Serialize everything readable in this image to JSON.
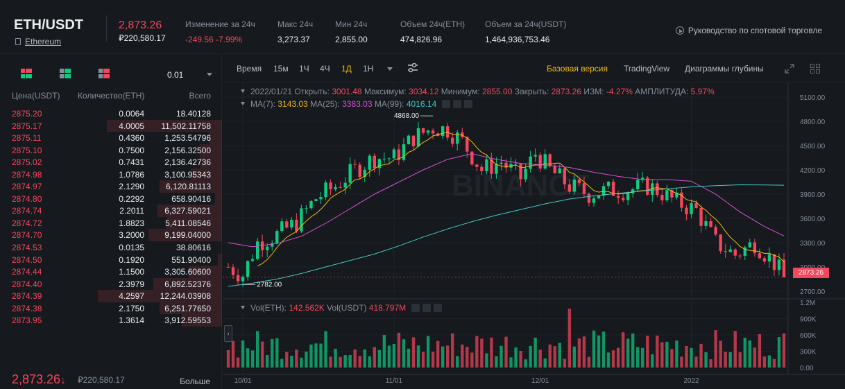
{
  "header": {
    "pair": "ETH/USDT",
    "coin_name": "Ethereum",
    "last_price": "2,873.26",
    "last_price_fiat": "₽220,580.17",
    "stats": [
      {
        "label": "Изменение за 24ч",
        "value": "-249.56 -7.99%",
        "negative": true
      },
      {
        "label": "Макс 24ч",
        "value": "3,273.37",
        "negative": false
      },
      {
        "label": "Мин 24ч",
        "value": "2,855.00",
        "negative": false
      },
      {
        "label": "Объем 24ч(ETH)",
        "value": "474,826.96",
        "negative": false
      },
      {
        "label": "Объем за 24ч(USDT)",
        "value": "1,464,936,753.46",
        "negative": false
      }
    ],
    "guide_label": "Руководство по спотовой торговле",
    "guide_icon": "play-circle-icon"
  },
  "orderbook": {
    "precision": "0.01",
    "headers": {
      "price": "Цена(USDT)",
      "qty": "Количество(ETH)",
      "total": "Всего"
    },
    "asks": [
      {
        "price": "2875.20",
        "qty": "0.0064",
        "total": "18.40128",
        "depth": 0.0
      },
      {
        "price": "2875.17",
        "qty": "4.0005",
        "total": "11,502.11758",
        "depth": 0.52
      },
      {
        "price": "2875.11",
        "qty": "0.4360",
        "total": "1,253.54796",
        "depth": 0.06
      },
      {
        "price": "2875.10",
        "qty": "0.7500",
        "total": "2,156.32500",
        "depth": 0.1
      },
      {
        "price": "2875.02",
        "qty": "0.7431",
        "total": "2,136.42736",
        "depth": 0.1
      },
      {
        "price": "2874.98",
        "qty": "1.0786",
        "total": "3,100.95343",
        "depth": 0.14
      },
      {
        "price": "2874.97",
        "qty": "2.1290",
        "total": "6,120.81113",
        "depth": 0.28
      },
      {
        "price": "2874.80",
        "qty": "0.2292",
        "total": "658.90416",
        "depth": 0.03
      },
      {
        "price": "2874.74",
        "qty": "2.2011",
        "total": "6,327.59021",
        "depth": 0.29
      },
      {
        "price": "2874.72",
        "qty": "1.8823",
        "total": "5,411.08546",
        "depth": 0.25
      },
      {
        "price": "2874.70",
        "qty": "3.2000",
        "total": "9,199.04000",
        "depth": 0.33
      },
      {
        "price": "2874.53",
        "qty": "0.0135",
        "total": "38.80616",
        "depth": 0.0
      },
      {
        "price": "2874.50",
        "qty": "0.1920",
        "total": "551.90400",
        "depth": 0.02
      },
      {
        "price": "2874.44",
        "qty": "1.1500",
        "total": "3,305.60600",
        "depth": 0.15
      },
      {
        "price": "2874.40",
        "qty": "2.3979",
        "total": "6,892.52376",
        "depth": 0.31
      },
      {
        "price": "2874.39",
        "qty": "4.2597",
        "total": "12,244.03908",
        "depth": 0.56
      },
      {
        "price": "2874.38",
        "qty": "2.1750",
        "total": "6,251.77650",
        "depth": 0.28
      },
      {
        "price": "2873.95",
        "qty": "1.3614",
        "total": "3,912.59553",
        "depth": 0.18
      }
    ],
    "last_price": "2,873.26",
    "last_arrow": "↓",
    "last_fiat": "₽220,580.17",
    "more_label": "Больше",
    "colors": {
      "ask": "#f6465d",
      "bid": "#0ecb81"
    }
  },
  "chart_toolbar": {
    "timeframes": [
      {
        "label": "Время",
        "active": false
      },
      {
        "label": "15м",
        "active": false
      },
      {
        "label": "1Ч",
        "active": false
      },
      {
        "label": "4Ч",
        "active": false
      },
      {
        "label": "1Д",
        "active": true
      },
      {
        "label": "1Н",
        "active": false
      }
    ],
    "views": [
      {
        "label": "Базовая версия",
        "active": true
      },
      {
        "label": "TradingView",
        "active": false
      },
      {
        "label": "Диаграммы глубины",
        "active": false
      }
    ]
  },
  "legend": {
    "date": "2022/01/21",
    "open_label": "Открыть:",
    "open": "3001.48",
    "high_label": "Максимум:",
    "high": "3034.12",
    "low_label": "Минимум:",
    "low": "2855.00",
    "close_label": "Закрыть:",
    "close": "2873.26",
    "chg_label": "ИЗМ:",
    "chg": "-4.27%",
    "amp_label": "АМПЛИТУДА:",
    "amp": "5.97%",
    "ma7_label": "MA(7):",
    "ma7": "3143.03",
    "ma25_label": "MA(25):",
    "ma25": "3383.03",
    "ma99_label": "MA(99):",
    "ma99": "4016.14",
    "vol_eth_label": "Vol(ETH):",
    "vol_eth": "142.562K",
    "vol_usdt_label": "Vol(USDT)",
    "vol_usdt": "418.797M"
  },
  "chart_data": {
    "type": "candlestick",
    "price_axis": {
      "min": 2700,
      "max": 5100,
      "ticks": [
        5100,
        4800,
        4500,
        4200,
        3900,
        3600,
        3300,
        3000,
        2700
      ],
      "tick_labels": [
        "5100.00",
        "4800.00",
        "4500.00",
        "4200.00",
        "3900.00",
        "3600.00",
        "3300.00",
        "3000.00",
        "2700.00"
      ]
    },
    "volume_axis": {
      "max": 1200000,
      "ticks": [
        1200000,
        900000,
        600000,
        300000,
        0
      ],
      "tick_labels": [
        "1.2M",
        "900K",
        "600K",
        "300K",
        "0.00"
      ]
    },
    "x_ticks": [
      {
        "label": "10/01",
        "index": 3
      },
      {
        "label": "11/01",
        "index": 34
      },
      {
        "label": "12/01",
        "index": 64
      },
      {
        "label": "2022",
        "index": 95
      }
    ],
    "annotations": {
      "high_label": "4868.00",
      "high_value": 4868,
      "high_index": 42,
      "low_label": "2782.00",
      "low_value": 2782,
      "low_index": 3
    },
    "current_price_label": "2873.26",
    "current_price": 2873.26,
    "colors": {
      "up": "#0ecb81",
      "down": "#f6465d",
      "ma7": "#f0b90b",
      "ma25": "#d84fd5",
      "ma99": "#44c8c8"
    },
    "candles": [],
    "ma99": [
      [
        0,
        2760
      ],
      [
        5,
        2800
      ],
      [
        10,
        2850
      ],
      [
        15,
        2920
      ],
      [
        20,
        3000
      ],
      [
        25,
        3080
      ],
      [
        30,
        3160
      ],
      [
        35,
        3260
      ],
      [
        40,
        3370
      ],
      [
        45,
        3470
      ],
      [
        50,
        3560
      ],
      [
        55,
        3640
      ],
      [
        60,
        3710
      ],
      [
        65,
        3780
      ],
      [
        70,
        3840
      ],
      [
        75,
        3880
      ],
      [
        80,
        3910
      ],
      [
        85,
        3940
      ],
      [
        90,
        3965
      ],
      [
        95,
        3990
      ],
      [
        100,
        4005
      ],
      [
        105,
        4016
      ],
      [
        110,
        4014
      ],
      [
        114,
        4010
      ]
    ],
    "ma25": [
      [
        0,
        3300
      ],
      [
        5,
        3250
      ],
      [
        10,
        3290
      ],
      [
        15,
        3380
      ],
      [
        20,
        3540
      ],
      [
        25,
        3720
      ],
      [
        30,
        3900
      ],
      [
        35,
        4050
      ],
      [
        40,
        4200
      ],
      [
        45,
        4330
      ],
      [
        50,
        4400
      ],
      [
        55,
        4330
      ],
      [
        60,
        4280
      ],
      [
        65,
        4260
      ],
      [
        70,
        4230
      ],
      [
        75,
        4170
      ],
      [
        80,
        4120
      ],
      [
        85,
        4080
      ],
      [
        90,
        4080
      ],
      [
        95,
        4060
      ],
      [
        100,
        3900
      ],
      [
        105,
        3680
      ],
      [
        110,
        3500
      ],
      [
        114,
        3383
      ]
    ],
    "volumes": []
  }
}
